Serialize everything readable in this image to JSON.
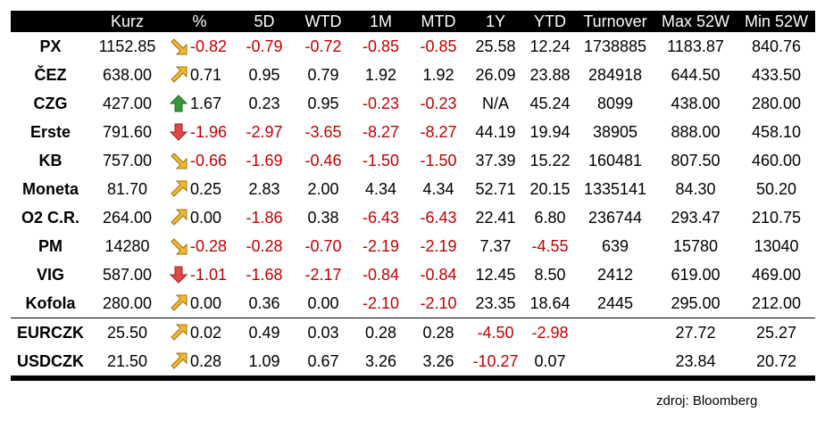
{
  "columns": [
    "",
    "Kurz",
    "%",
    "5D",
    "WTD",
    "1M",
    "MTD",
    "1Y",
    "YTD",
    "Turnover",
    "Max 52W",
    "Min 52W"
  ],
  "rows": [
    {
      "name": "PX",
      "trend": "down-right-arrow-icon",
      "kurz": "1152.85",
      "pct": "-0.82",
      "d5": "-0.79",
      "wtd": "-0.72",
      "m1": "-0.85",
      "mtd": "-0.85",
      "y1": "25.58",
      "ytd": "12.24",
      "turnover": "1738885",
      "max52": "1183.87",
      "min52": "840.76"
    },
    {
      "name": "ČEZ",
      "trend": "up-right-arrow-icon",
      "kurz": "638.00",
      "pct": "0.71",
      "d5": "0.95",
      "wtd": "0.79",
      "m1": "1.92",
      "mtd": "1.92",
      "y1": "26.09",
      "ytd": "23.88",
      "turnover": "284918",
      "max52": "644.50",
      "min52": "433.50"
    },
    {
      "name": "CZG",
      "trend": "up-arrow-icon",
      "kurz": "427.00",
      "pct": "1.67",
      "d5": "0.23",
      "wtd": "0.95",
      "m1": "-0.23",
      "mtd": "-0.23",
      "y1": "N/A",
      "ytd": "45.24",
      "turnover": "8099",
      "max52": "438.00",
      "min52": "280.00"
    },
    {
      "name": "Erste",
      "trend": "down-arrow-icon",
      "kurz": "791.60",
      "pct": "-1.96",
      "d5": "-2.97",
      "wtd": "-3.65",
      "m1": "-8.27",
      "mtd": "-8.27",
      "y1": "44.19",
      "ytd": "19.94",
      "turnover": "38905",
      "max52": "888.00",
      "min52": "458.10"
    },
    {
      "name": "KB",
      "trend": "down-right-arrow-icon",
      "kurz": "757.00",
      "pct": "-0.66",
      "d5": "-1.69",
      "wtd": "-0.46",
      "m1": "-1.50",
      "mtd": "-1.50",
      "y1": "37.39",
      "ytd": "15.22",
      "turnover": "160481",
      "max52": "807.50",
      "min52": "460.00"
    },
    {
      "name": "Moneta",
      "trend": "up-right-arrow-icon",
      "kurz": "81.70",
      "pct": "0.25",
      "d5": "2.83",
      "wtd": "2.00",
      "m1": "4.34",
      "mtd": "4.34",
      "y1": "52.71",
      "ytd": "20.15",
      "turnover": "1335141",
      "max52": "84.30",
      "min52": "50.20"
    },
    {
      "name": "O2 C.R.",
      "trend": "up-right-arrow-icon",
      "kurz": "264.00",
      "pct": "0.00",
      "d5": "-1.86",
      "wtd": "0.38",
      "m1": "-6.43",
      "mtd": "-6.43",
      "y1": "22.41",
      "ytd": "6.80",
      "turnover": "236744",
      "max52": "293.47",
      "min52": "210.75"
    },
    {
      "name": "PM",
      "trend": "down-right-arrow-icon",
      "kurz": "14280",
      "pct": "-0.28",
      "d5": "-0.28",
      "wtd": "-0.70",
      "m1": "-2.19",
      "mtd": "-2.19",
      "y1": "7.37",
      "ytd": "-4.55",
      "turnover": "639",
      "max52": "15780",
      "min52": "13040"
    },
    {
      "name": "VIG",
      "trend": "down-arrow-icon",
      "kurz": "587.00",
      "pct": "-1.01",
      "d5": "-1.68",
      "wtd": "-2.17",
      "m1": "-0.84",
      "mtd": "-0.84",
      "y1": "12.45",
      "ytd": "8.50",
      "turnover": "2412",
      "max52": "619.00",
      "min52": "469.00"
    },
    {
      "name": "Kofola",
      "trend": "up-right-arrow-icon",
      "kurz": "280.00",
      "pct": "0.00",
      "d5": "0.36",
      "wtd": "0.00",
      "m1": "-2.10",
      "mtd": "-2.10",
      "y1": "23.35",
      "ytd": "18.64",
      "turnover": "2445",
      "max52": "295.00",
      "min52": "212.00"
    },
    {
      "name": "EURCZK",
      "trend": "up-right-arrow-icon",
      "kurz": "25.50",
      "pct": "0.02",
      "d5": "0.49",
      "wtd": "0.03",
      "m1": "0.28",
      "mtd": "0.28",
      "y1": "-4.50",
      "ytd": "-2.98",
      "turnover": "",
      "max52": "27.72",
      "min52": "25.27"
    },
    {
      "name": "USDCZK",
      "trend": "up-right-arrow-icon",
      "kurz": "21.50",
      "pct": "0.28",
      "d5": "1.09",
      "wtd": "0.67",
      "m1": "3.26",
      "mtd": "3.26",
      "y1": "-10.27",
      "ytd": "0.07",
      "turnover": "",
      "max52": "23.84",
      "min52": "20.72"
    }
  ],
  "source": "zdroj: Bloomberg",
  "colors": {
    "negative": "#c00000",
    "header_bg": "#000000",
    "header_text": "#ffffff",
    "arrow_yellow": "#f0b830",
    "arrow_green": "#3a9a3a",
    "arrow_red": "#e04848"
  }
}
